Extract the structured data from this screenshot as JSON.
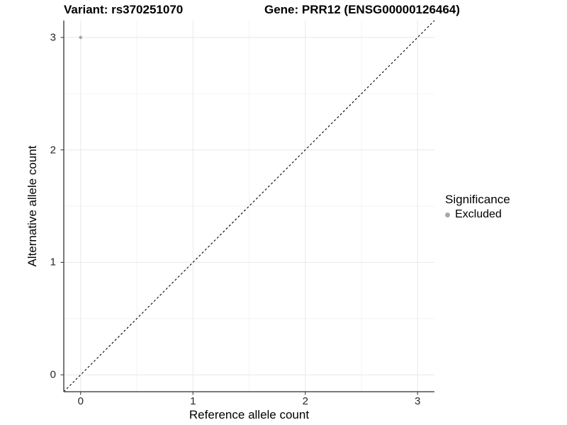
{
  "chart_data": {
    "type": "scatter",
    "title_left": "Variant: rs370251070",
    "title_right": "Gene: PRR12 (ENSG00000126464)",
    "xlabel": "Reference allele count",
    "ylabel": "Alternative allele count",
    "x_ticks": [
      0,
      1,
      2,
      3
    ],
    "y_ticks": [
      0,
      1,
      2,
      3
    ],
    "x_minor_ticks": [
      0.5,
      1.5,
      2.5
    ],
    "y_minor_ticks": [
      0.5,
      1.5,
      2.5
    ],
    "xlim": [
      -0.15,
      3.15
    ],
    "ylim": [
      -0.15,
      3.15
    ],
    "grid": true,
    "identity_line": {
      "style": "dashed",
      "slope": 1,
      "intercept": 0
    },
    "series": [
      {
        "name": "Excluded",
        "color": "#a8a8a8",
        "points": [
          {
            "x": 0,
            "y": 3
          }
        ]
      }
    ],
    "legend": {
      "title": "Significance",
      "position": "right",
      "items": [
        {
          "label": "Excluded",
          "color": "#a8a8a8"
        }
      ]
    }
  },
  "colors": {
    "background": "#ffffff",
    "point": "#a8a8a8",
    "grid_major": "#e8e8e8",
    "grid_minor": "#f3f3f3",
    "axis_line": "#4d4d4d",
    "identity_line": "#000000",
    "tick_label": "#262626",
    "title": "#000000"
  }
}
